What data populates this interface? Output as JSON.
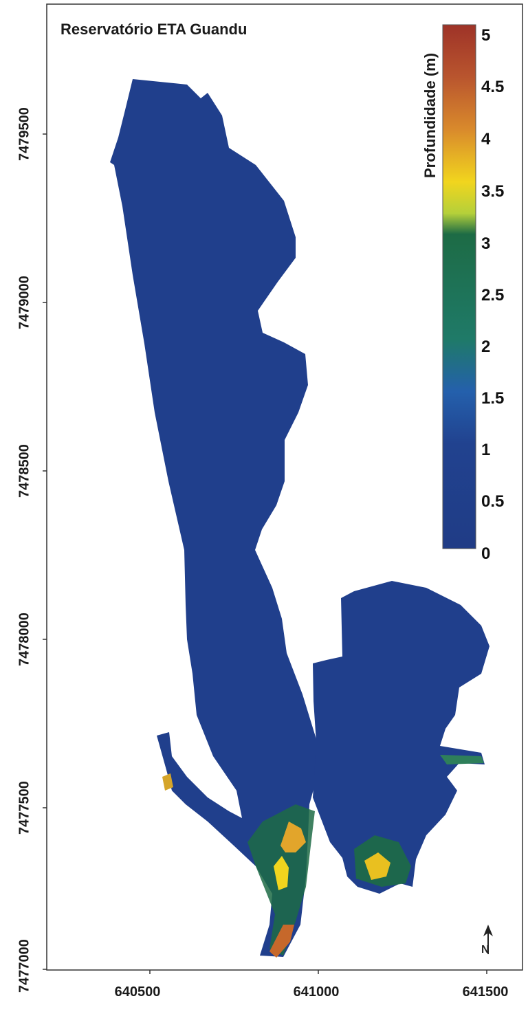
{
  "map": {
    "title": "Reservatório ETA Guandu",
    "background_water_color": "#203f8c",
    "frame_color": "#333333"
  },
  "legend": {
    "title": "Profundidade (m)",
    "min": 0,
    "max": 5,
    "labels": [
      "5",
      "4.5",
      "4",
      "3.5",
      "3",
      "2.5",
      "2",
      "1.5",
      "1",
      "0.5",
      "0"
    ],
    "color_stops": [
      {
        "value": 0,
        "color": "#203c86"
      },
      {
        "value": 1,
        "color": "#21428f"
      },
      {
        "value": 1.5,
        "color": "#2460ac"
      },
      {
        "value": 2,
        "color": "#1f7a68"
      },
      {
        "value": 3,
        "color": "#1d6b45"
      },
      {
        "value": 3.2,
        "color": "#b5d03a"
      },
      {
        "value": 3.5,
        "color": "#f1d51e"
      },
      {
        "value": 4,
        "color": "#d98a2c"
      },
      {
        "value": 4.5,
        "color": "#b9552e"
      },
      {
        "value": 5,
        "color": "#9e3328"
      }
    ]
  },
  "axes": {
    "y_ticks": [
      "7479500",
      "7479000",
      "7478500",
      "7478000",
      "7477500",
      "7477000"
    ],
    "x_ticks": [
      "640500",
      "641000",
      "641500"
    ]
  },
  "north_arrow": {
    "label": "N",
    "icon": "north-arrow-icon"
  }
}
